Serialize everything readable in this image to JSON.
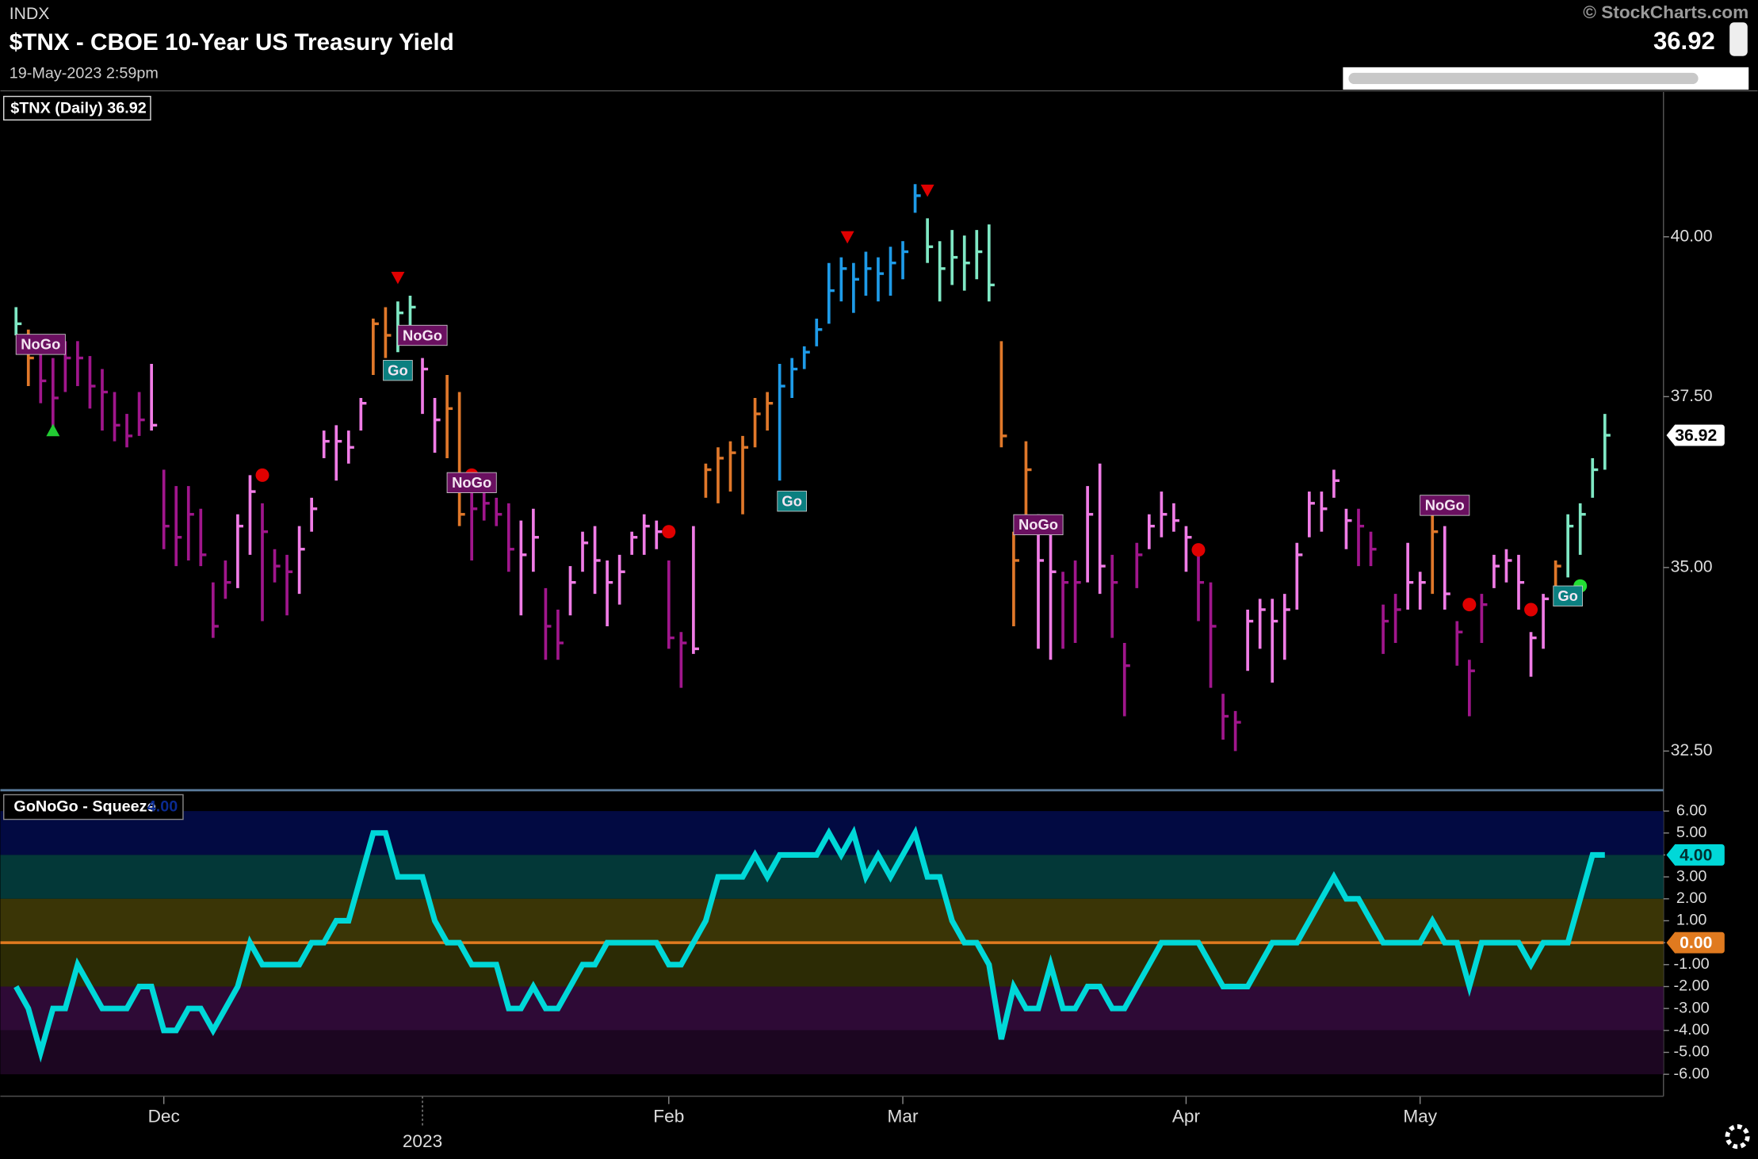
{
  "header": {
    "exchange": "INDX",
    "title": "$TNX - CBOE 10-Year US Treasury Yield",
    "timestamp": "19-May-2023 2:59pm",
    "source": "© StockCharts.com",
    "last": "36.92"
  },
  "chart_data": [
    {
      "type": "ohlc",
      "legend": "$TNX (Daily) 36.92",
      "log_scale": true,
      "ylim": [
        31.99,
        42.41
      ],
      "yticks": [
        {
          "value": 32.5,
          "label": "32.50"
        },
        {
          "value": 35,
          "label": "35.00"
        },
        {
          "value": 37.5,
          "label": "37.50"
        },
        {
          "value": 40,
          "label": "40.00"
        }
      ],
      "last_label": {
        "value": 36.92,
        "label": "36.92"
      },
      "xlim": [
        -1.27,
        133.76
      ],
      "xticks": [
        {
          "value": 12,
          "label": "Dec"
        },
        {
          "value": 33,
          "label": "2023"
        },
        {
          "value": 53,
          "label": "Feb"
        },
        {
          "value": 72,
          "label": "Mar"
        },
        {
          "value": 95,
          "label": "Apr"
        },
        {
          "value": 114,
          "label": "May"
        }
      ],
      "palette": {
        "P": "#a0168c",
        "K": "#f07ce6",
        "O": "#e0782a",
        "B": "#1e9be8",
        "A": "#7fe8c4"
      },
      "color_keys": "AOPPPPPPPPPKPPPPPPKKPPPKKKKKKOOAAKKOOPPPPKKPPKKKKKKKKPPKOOOOOOBBBBBBBBBBBBAAAAAAOOOKKPPKKPPPKKKKPPPPKKKKKKKKKPPPPKKOKPPPKKKKKOAAAA",
      "high": [
        38.88,
        38.53,
        38.27,
        38.09,
        38.35,
        38.35,
        38.12,
        37.92,
        37.57,
        37.24,
        37.57,
        38.0,
        36.41,
        36.17,
        36.17,
        35.84,
        34.79,
        35.1,
        35.76,
        36.33,
        35.92,
        35.26,
        35.18,
        35.59,
        36.0,
        36.99,
        37.07,
        36.99,
        37.48,
        38.7,
        38.88,
        38.97,
        39.06,
        38.09,
        37.48,
        37.83,
        37.57,
        36.33,
        36.09,
        36.0,
        35.92,
        35.67,
        35.84,
        34.71,
        34.41,
        35.02,
        35.51,
        35.59,
        35.1,
        35.18,
        35.51,
        35.76,
        35.67,
        35.1,
        34.1,
        35.59,
        36.5,
        36.74,
        36.83,
        36.91,
        37.48,
        37.57,
        38.0,
        38.09,
        38.27,
        38.7,
        39.58,
        39.67,
        39.58,
        39.76,
        39.67,
        39.84,
        39.93,
        40.86,
        40.3,
        39.93,
        40.11,
        40.02,
        40.11,
        40.2,
        38.35,
        35.51,
        36.83,
        35.76,
        35.59,
        34.94,
        35.1,
        36.17,
        36.5,
        35.18,
        33.95,
        35.35,
        35.76,
        36.09,
        35.92,
        35.59,
        35.26,
        34.79,
        33.26,
        33.03,
        34.41,
        34.56,
        34.56,
        34.63,
        35.35,
        36.09,
        36.09,
        36.41,
        35.84,
        35.84,
        35.51,
        34.48,
        34.63,
        35.35,
        34.94,
        35.76,
        35.59,
        34.25,
        33.72,
        34.63,
        35.18,
        35.26,
        35.18,
        34.1,
        34.63,
        35.1,
        35.76,
        35.92,
        36.58,
        37.24
      ],
      "low": [
        38.44,
        37.66,
        37.4,
        36.99,
        37.57,
        37.66,
        37.32,
        36.99,
        36.83,
        36.74,
        36.91,
        36.99,
        35.26,
        35.02,
        35.1,
        35.02,
        34.02,
        34.56,
        34.71,
        35.18,
        34.25,
        34.79,
        34.33,
        34.63,
        35.51,
        36.58,
        36.25,
        36.5,
        36.99,
        37.83,
        38.09,
        38.18,
        38.44,
        37.24,
        36.66,
        36.58,
        35.59,
        35.1,
        35.67,
        35.59,
        34.94,
        34.33,
        34.94,
        33.72,
        33.72,
        34.33,
        34.94,
        34.63,
        34.18,
        34.48,
        35.18,
        35.18,
        35.26,
        33.87,
        33.34,
        33.8,
        36.0,
        35.92,
        36.09,
        35.76,
        36.74,
        36.99,
        36.25,
        37.48,
        37.92,
        38.27,
        38.62,
        38.97,
        38.79,
        39.06,
        38.97,
        39.06,
        39.32,
        40.39,
        39.58,
        38.97,
        39.23,
        39.14,
        39.32,
        38.97,
        36.74,
        34.18,
        35.59,
        33.87,
        33.72,
        33.87,
        33.95,
        34.79,
        34.63,
        34.02,
        32.96,
        34.71,
        35.26,
        35.43,
        35.51,
        34.94,
        34.25,
        33.34,
        32.65,
        32.5,
        33.57,
        33.87,
        33.41,
        33.72,
        34.41,
        35.43,
        35.51,
        36.0,
        35.26,
        35.02,
        35.02,
        33.8,
        33.95,
        34.41,
        34.41,
        34.63,
        34.41,
        33.64,
        32.96,
        33.95,
        34.71,
        34.79,
        34.41,
        33.49,
        33.87,
        34.63,
        34.86,
        35.18,
        36.0,
        36.41
      ],
      "close": [
        38.62,
        38.09,
        37.74,
        37.48,
        38.09,
        38.09,
        37.66,
        37.57,
        37.07,
        36.91,
        37.15,
        37.07,
        35.59,
        35.43,
        35.76,
        35.18,
        34.18,
        34.79,
        35.59,
        36.09,
        35.51,
        35.02,
        34.94,
        35.26,
        35.84,
        36.83,
        36.83,
        36.74,
        37.4,
        38.62,
        38.44,
        38.79,
        38.88,
        37.92,
        37.15,
        37.32,
        35.76,
        35.84,
        35.92,
        35.76,
        35.26,
        35.18,
        35.43,
        34.18,
        33.95,
        34.79,
        35.35,
        35.1,
        34.79,
        34.94,
        35.43,
        35.59,
        35.51,
        34.02,
        33.95,
        33.87,
        36.41,
        36.58,
        36.66,
        36.74,
        37.24,
        37.4,
        37.66,
        37.92,
        38.18,
        38.53,
        39.14,
        39.49,
        39.32,
        39.49,
        39.41,
        39.58,
        39.76,
        40.67,
        39.84,
        39.49,
        39.67,
        39.58,
        39.76,
        39.23,
        36.91,
        35.1,
        36.41,
        35.1,
        34.94,
        34.79,
        34.79,
        35.76,
        35.02,
        34.79,
        33.64,
        35.18,
        35.59,
        35.76,
        35.67,
        35.43,
        34.79,
        34.18,
        32.96,
        32.88,
        34.25,
        34.41,
        34.25,
        34.41,
        35.18,
        35.92,
        35.84,
        36.25,
        35.67,
        35.59,
        35.26,
        34.25,
        34.41,
        34.79,
        34.79,
        35.51,
        34.63,
        34.1,
        33.57,
        34.48,
        35.02,
        35.1,
        34.79,
        34.02,
        34.56,
        35.02,
        35.59,
        35.76,
        36.41,
        36.92
      ],
      "signals": [
        {
          "index": 3,
          "value": 36.99,
          "shape": "triangle-up",
          "color": "#22cc33"
        },
        {
          "index": 31,
          "value": 39.35,
          "shape": "triangle-down",
          "color": "#e00000"
        },
        {
          "index": 67.5,
          "value": 40.0,
          "shape": "triangle-down",
          "color": "#e00000"
        },
        {
          "index": 74,
          "value": 40.76,
          "shape": "triangle-down",
          "color": "#e00000"
        },
        {
          "index": 20,
          "value": 36.33,
          "shape": "dot",
          "color": "#e00000"
        },
        {
          "index": 37,
          "value": 36.33,
          "shape": "dot",
          "color": "#e00000"
        },
        {
          "index": 53,
          "value": 35.51,
          "shape": "dot",
          "color": "#e00000"
        },
        {
          "index": 96,
          "value": 35.25,
          "shape": "dot",
          "color": "#e00000"
        },
        {
          "index": 118,
          "value": 34.48,
          "shape": "dot",
          "color": "#e00000"
        },
        {
          "index": 123,
          "value": 34.41,
          "shape": "dot",
          "color": "#e00000"
        },
        {
          "index": 127,
          "value": 34.74,
          "shape": "dot",
          "color": "#22dd33"
        }
      ],
      "labels": [
        {
          "index": 2,
          "value": 38.3,
          "text": "NoGo",
          "background": "#6a1060"
        },
        {
          "index": 31,
          "value": 37.9,
          "text": "Go",
          "background": "#0b7f80"
        },
        {
          "index": 33,
          "value": 38.44,
          "text": "NoGo",
          "background": "#6a1060"
        },
        {
          "index": 37,
          "value": 36.22,
          "text": "NoGo",
          "background": "#6a1060"
        },
        {
          "index": 63,
          "value": 35.95,
          "text": "Go",
          "background": "#0b7f80"
        },
        {
          "index": 83,
          "value": 35.61,
          "text": "NoGo",
          "background": "#6a1060"
        },
        {
          "index": 116,
          "value": 35.89,
          "text": "NoGo",
          "background": "#6a1060"
        },
        {
          "index": 126,
          "value": 34.6,
          "text": "Go",
          "background": "#0b7f80"
        }
      ]
    },
    {
      "type": "line",
      "legend": "GoNoGo - Squeeze",
      "legend_value": "4.00",
      "color": "#00d8d8",
      "ylim": [
        -7,
        6.95
      ],
      "yticks": [
        {
          "value": 6,
          "label": "6.00"
        },
        {
          "value": 5,
          "label": "5.00"
        },
        {
          "value": 4,
          "label": "4.00"
        },
        {
          "value": 3,
          "label": "3.00"
        },
        {
          "value": 2,
          "label": "2.00"
        },
        {
          "value": 1,
          "label": "1.00"
        },
        {
          "value": 0,
          "label": "0.00"
        },
        {
          "value": -1,
          "label": "-1.00"
        },
        {
          "value": -2,
          "label": "-2.00"
        },
        {
          "value": -3,
          "label": "-3.00"
        },
        {
          "value": -4,
          "label": "-4.00"
        },
        {
          "value": -5,
          "label": "-5.00"
        },
        {
          "value": -6,
          "label": "-6.00"
        }
      ],
      "bands": [
        {
          "range": [
            4,
            6
          ],
          "color": "#020a42"
        },
        {
          "range": [
            2,
            4
          ],
          "color": "#033838"
        },
        {
          "range": [
            0,
            2
          ],
          "color": "#3a3506"
        },
        {
          "range": [
            -2,
            0
          ],
          "color": "#2c2b05"
        },
        {
          "range": [
            -4,
            -2
          ],
          "color": "#2e0a36"
        },
        {
          "range": [
            -6,
            -4
          ],
          "color": "#1c0621"
        }
      ],
      "zero_line": {
        "value": 0,
        "label": "0.00",
        "color": "#e07a1f"
      },
      "last_label": {
        "value": 4,
        "label": "4.00"
      },
      "values": [
        -2,
        -3,
        -5,
        -3,
        -3,
        -1,
        -2,
        -3,
        -3,
        -3,
        -2,
        -2,
        -4,
        -4,
        -3,
        -3,
        -4,
        -3,
        -2,
        0,
        -1,
        -1,
        -1,
        -1,
        0,
        0,
        1,
        1,
        3,
        5,
        5,
        3,
        3,
        3,
        1,
        0,
        0,
        -1,
        -1,
        -1,
        -3,
        -3,
        -2,
        -3,
        -3,
        -2,
        -1,
        -1,
        0,
        0,
        0,
        0,
        0,
        -1,
        -1,
        0,
        1,
        3,
        3,
        3,
        4,
        3,
        4,
        4,
        4,
        4,
        5,
        4,
        5,
        3,
        4,
        3,
        4,
        5,
        3,
        3,
        1,
        0,
        0,
        -1,
        -4.4,
        -2,
        -3,
        -3,
        -1,
        -3,
        -3,
        -2,
        -2,
        -3,
        -3,
        -2,
        -1,
        0,
        0,
        0,
        0,
        -1,
        -2,
        -2,
        -2,
        -1,
        0,
        0,
        0,
        1,
        2,
        3,
        2,
        2,
        1,
        0,
        0,
        0,
        0,
        1,
        0,
        0,
        -2,
        0,
        0,
        0,
        0,
        -1,
        0,
        0,
        0,
        2,
        4,
        4
      ]
    }
  ]
}
